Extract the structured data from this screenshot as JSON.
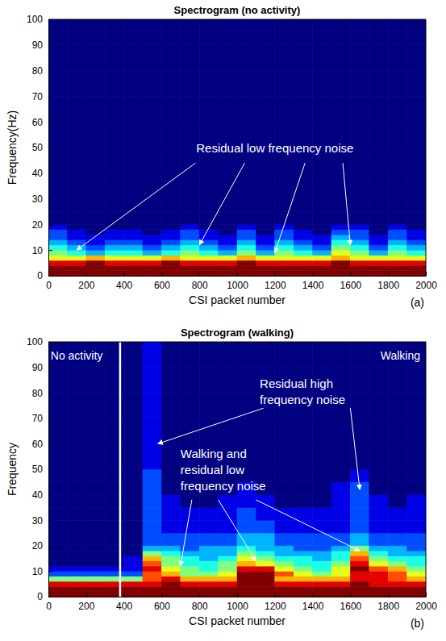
{
  "chart_data": [
    {
      "type": "heatmap",
      "title": "Spectrogram (no activity)",
      "x_label": "CSI packet number",
      "y_label": "Frequency(Hz)",
      "panel": "(a)",
      "xlim": [
        0,
        2000
      ],
      "xticks": [
        0,
        200,
        400,
        600,
        800,
        1000,
        1200,
        1400,
        1600,
        1800,
        2000
      ],
      "ylim": [
        0,
        100
      ],
      "yticks": [
        0,
        10,
        20,
        30,
        40,
        50,
        60,
        70,
        80,
        90,
        100
      ],
      "zlim": [
        0,
        10
      ],
      "x_edges": [
        0,
        100,
        200,
        300,
        400,
        500,
        600,
        700,
        800,
        900,
        1000,
        1100,
        1200,
        1300,
        1400,
        1500,
        1600,
        1700,
        1800,
        1900,
        2000
      ],
      "y_edges": [
        0,
        2,
        4,
        6,
        8,
        10,
        12,
        14,
        16,
        18,
        20,
        25,
        30,
        35,
        40,
        45,
        50,
        60,
        70,
        80,
        90,
        100
      ],
      "z": [
        [
          10,
          10,
          10,
          10,
          10,
          10,
          10,
          10,
          10,
          10,
          10,
          10,
          10,
          10,
          10,
          10,
          10,
          10,
          10,
          10
        ],
        [
          10,
          10,
          10,
          10,
          10,
          10,
          10,
          10,
          10,
          10,
          10,
          10,
          10,
          10,
          10,
          10,
          10,
          10,
          10,
          10
        ],
        [
          9,
          9,
          10,
          9,
          9,
          9,
          10,
          9,
          9,
          9,
          10,
          9,
          9,
          9,
          9,
          10,
          9,
          9,
          9,
          9
        ],
        [
          6,
          6,
          7,
          6,
          6,
          6,
          7,
          6,
          6,
          6,
          7,
          6,
          6,
          6,
          6,
          7,
          6,
          6,
          6,
          6
        ],
        [
          5,
          4,
          3,
          4,
          4,
          3,
          4,
          5,
          4,
          3,
          5,
          3,
          5,
          4,
          3,
          6,
          5,
          3,
          5,
          4
        ],
        [
          4,
          3,
          2,
          3,
          3,
          2,
          3,
          4,
          3,
          2,
          4,
          2,
          4,
          3,
          2,
          5,
          4,
          2,
          4,
          3
        ],
        [
          3,
          2,
          1,
          2,
          2,
          1,
          2,
          3,
          2,
          1,
          3,
          1,
          3,
          2,
          1,
          4,
          3,
          1,
          3,
          2
        ],
        [
          2,
          1,
          1,
          1,
          1,
          1,
          1,
          2,
          1,
          1,
          2,
          1,
          2,
          1,
          1,
          3,
          2,
          1,
          2,
          1
        ],
        [
          2,
          1,
          0,
          1,
          1,
          0,
          1,
          2,
          1,
          0,
          2,
          0,
          2,
          1,
          0,
          2,
          2,
          0,
          2,
          1
        ],
        [
          1,
          0,
          0,
          0,
          0,
          0,
          0,
          1,
          0,
          0,
          1,
          0,
          1,
          0,
          0,
          1,
          1,
          0,
          1,
          0
        ],
        [
          0,
          0,
          0,
          0,
          0,
          0,
          0,
          0,
          0,
          0,
          0,
          0,
          0,
          0,
          0,
          0,
          0,
          0,
          0,
          0
        ],
        [
          0,
          0,
          0,
          0,
          0,
          0,
          0,
          0,
          0,
          0,
          0,
          0,
          0,
          0,
          0,
          0,
          0,
          0,
          0,
          0
        ],
        [
          0,
          0,
          0,
          0,
          0,
          0,
          0,
          0,
          0,
          0,
          0,
          0,
          0,
          0,
          0,
          0,
          0,
          0,
          0,
          0
        ],
        [
          0,
          0,
          0,
          0,
          0,
          0,
          0,
          0,
          0,
          0,
          0,
          0,
          0,
          0,
          0,
          0,
          0,
          0,
          0,
          0
        ],
        [
          0,
          0,
          0,
          0,
          0,
          0,
          0,
          0,
          0,
          0,
          0,
          0,
          0,
          0,
          0,
          0,
          0,
          0,
          0,
          0
        ],
        [
          0,
          0,
          0,
          0,
          0,
          0,
          0,
          0,
          0,
          0,
          0,
          0,
          0,
          0,
          0,
          0,
          0,
          0,
          0,
          0
        ],
        [
          0,
          0,
          0,
          0,
          0,
          0,
          0,
          0,
          0,
          0,
          0,
          0,
          0,
          0,
          0,
          0,
          0,
          0,
          0,
          0
        ],
        [
          0,
          0,
          0,
          0,
          0,
          0,
          0,
          0,
          0,
          0,
          0,
          0,
          0,
          0,
          0,
          0,
          0,
          0,
          0,
          0
        ],
        [
          0,
          0,
          0,
          0,
          0,
          0,
          0,
          0,
          0,
          0,
          0,
          0,
          0,
          0,
          0,
          0,
          0,
          0,
          0,
          0
        ],
        [
          0,
          0,
          0,
          0,
          0,
          0,
          0,
          0,
          0,
          0,
          0,
          0,
          0,
          0,
          0,
          0,
          0,
          0,
          0,
          0
        ],
        [
          0,
          0,
          0,
          0,
          0,
          0,
          0,
          0,
          0,
          0,
          0,
          0,
          0,
          0,
          0,
          0,
          0,
          0,
          0,
          0
        ]
      ],
      "annotations": [
        "Residual low frequency noise"
      ]
    },
    {
      "type": "heatmap",
      "title": "Spectrogram (walking)",
      "x_label": "CSI packet number",
      "y_label": "Frequency",
      "panel": "(b)",
      "xlim": [
        0,
        2000
      ],
      "xticks": [
        0,
        200,
        400,
        600,
        800,
        1000,
        1200,
        1400,
        1600,
        1800,
        2000
      ],
      "ylim": [
        0,
        100
      ],
      "yticks": [
        0,
        10,
        20,
        30,
        40,
        50,
        60,
        70,
        80,
        90,
        100
      ],
      "zlim": [
        0,
        10
      ],
      "divider": 380,
      "x_edges": [
        0,
        100,
        200,
        300,
        400,
        500,
        600,
        700,
        800,
        900,
        1000,
        1100,
        1200,
        1300,
        1400,
        1500,
        1600,
        1700,
        1800,
        1900,
        2000
      ],
      "y_edges": [
        0,
        2,
        4,
        6,
        8,
        10,
        12,
        14,
        16,
        18,
        20,
        25,
        30,
        35,
        40,
        45,
        50,
        60,
        70,
        80,
        90,
        100
      ],
      "z": [
        [
          10,
          10,
          10,
          10,
          10,
          10,
          10,
          10,
          10,
          10,
          10,
          10,
          10,
          10,
          10,
          10,
          10,
          10,
          10,
          10
        ],
        [
          10,
          10,
          10,
          10,
          10,
          10,
          10,
          10,
          10,
          10,
          10,
          10,
          10,
          10,
          10,
          10,
          10,
          10,
          10,
          10
        ],
        [
          9,
          9,
          9,
          9,
          9,
          9,
          10,
          9,
          9,
          9,
          10,
          10,
          9,
          9,
          9,
          9,
          10,
          9,
          9,
          9
        ],
        [
          5,
          5,
          5,
          5,
          5,
          8,
          9,
          7,
          7,
          7,
          10,
          10,
          7,
          7,
          7,
          7,
          9,
          9,
          8,
          7
        ],
        [
          2,
          2,
          2,
          2,
          2,
          8,
          7,
          5,
          5,
          6,
          10,
          10,
          8,
          6,
          5,
          6,
          9,
          9,
          8,
          6
        ],
        [
          1,
          1,
          1,
          1,
          1,
          9,
          6,
          5,
          4,
          5,
          9,
          9,
          6,
          5,
          4,
          6,
          10,
          8,
          7,
          5
        ],
        [
          0,
          0,
          0,
          0,
          1,
          8,
          5,
          4,
          4,
          5,
          7,
          6,
          5,
          4,
          4,
          5,
          9,
          6,
          5,
          4
        ],
        [
          0,
          0,
          0,
          0,
          1,
          7,
          5,
          4,
          3,
          4,
          6,
          5,
          4,
          4,
          3,
          4,
          8,
          5,
          4,
          4
        ],
        [
          0,
          0,
          0,
          0,
          0,
          5,
          4,
          3,
          3,
          3,
          5,
          4,
          3,
          3,
          3,
          4,
          7,
          4,
          3,
          3
        ],
        [
          0,
          0,
          0,
          0,
          0,
          3,
          3,
          2,
          3,
          3,
          4,
          3,
          3,
          2,
          2,
          3,
          5,
          3,
          3,
          2
        ],
        [
          0,
          0,
          0,
          0,
          0,
          2,
          2,
          2,
          2,
          2,
          3,
          3,
          2,
          2,
          2,
          2,
          3,
          2,
          2,
          2
        ],
        [
          0,
          0,
          0,
          0,
          0,
          2,
          1,
          1,
          1,
          1,
          2,
          2,
          1,
          1,
          1,
          1,
          2,
          1,
          1,
          1
        ],
        [
          0,
          0,
          0,
          0,
          0,
          2,
          1,
          1,
          1,
          1,
          2,
          1,
          1,
          1,
          1,
          1,
          2,
          1,
          1,
          1
        ],
        [
          0,
          0,
          0,
          0,
          0,
          2,
          1,
          0,
          0,
          1,
          1,
          1,
          0,
          0,
          0,
          1,
          2,
          1,
          0,
          1
        ],
        [
          0,
          0,
          0,
          0,
          0,
          2,
          0,
          0,
          0,
          0,
          1,
          0,
          0,
          0,
          0,
          1,
          2,
          0,
          0,
          0
        ],
        [
          0,
          0,
          0,
          0,
          0,
          2,
          0,
          0,
          0,
          0,
          0,
          0,
          0,
          0,
          0,
          0,
          1,
          0,
          0,
          0
        ],
        [
          0,
          0,
          0,
          0,
          0,
          1,
          0,
          0,
          0,
          0,
          0,
          0,
          0,
          0,
          0,
          0,
          0,
          0,
          0,
          0
        ],
        [
          0,
          0,
          0,
          0,
          0,
          1,
          0,
          0,
          0,
          0,
          0,
          0,
          0,
          0,
          0,
          0,
          0,
          0,
          0,
          0
        ],
        [
          0,
          0,
          0,
          0,
          0,
          1,
          0,
          0,
          0,
          0,
          0,
          0,
          0,
          0,
          0,
          0,
          0,
          0,
          0,
          0
        ],
        [
          0,
          0,
          0,
          0,
          0,
          1,
          0,
          0,
          0,
          0,
          0,
          0,
          0,
          0,
          0,
          0,
          0,
          0,
          0,
          0
        ],
        [
          0,
          0,
          0,
          0,
          0,
          1,
          0,
          0,
          0,
          0,
          0,
          0,
          0,
          0,
          0,
          0,
          0,
          0,
          0,
          0
        ]
      ],
      "annotations": [
        "No activity",
        "Walking",
        "Residual high frequency noise",
        "Walking and residual low frequency noise"
      ]
    }
  ]
}
